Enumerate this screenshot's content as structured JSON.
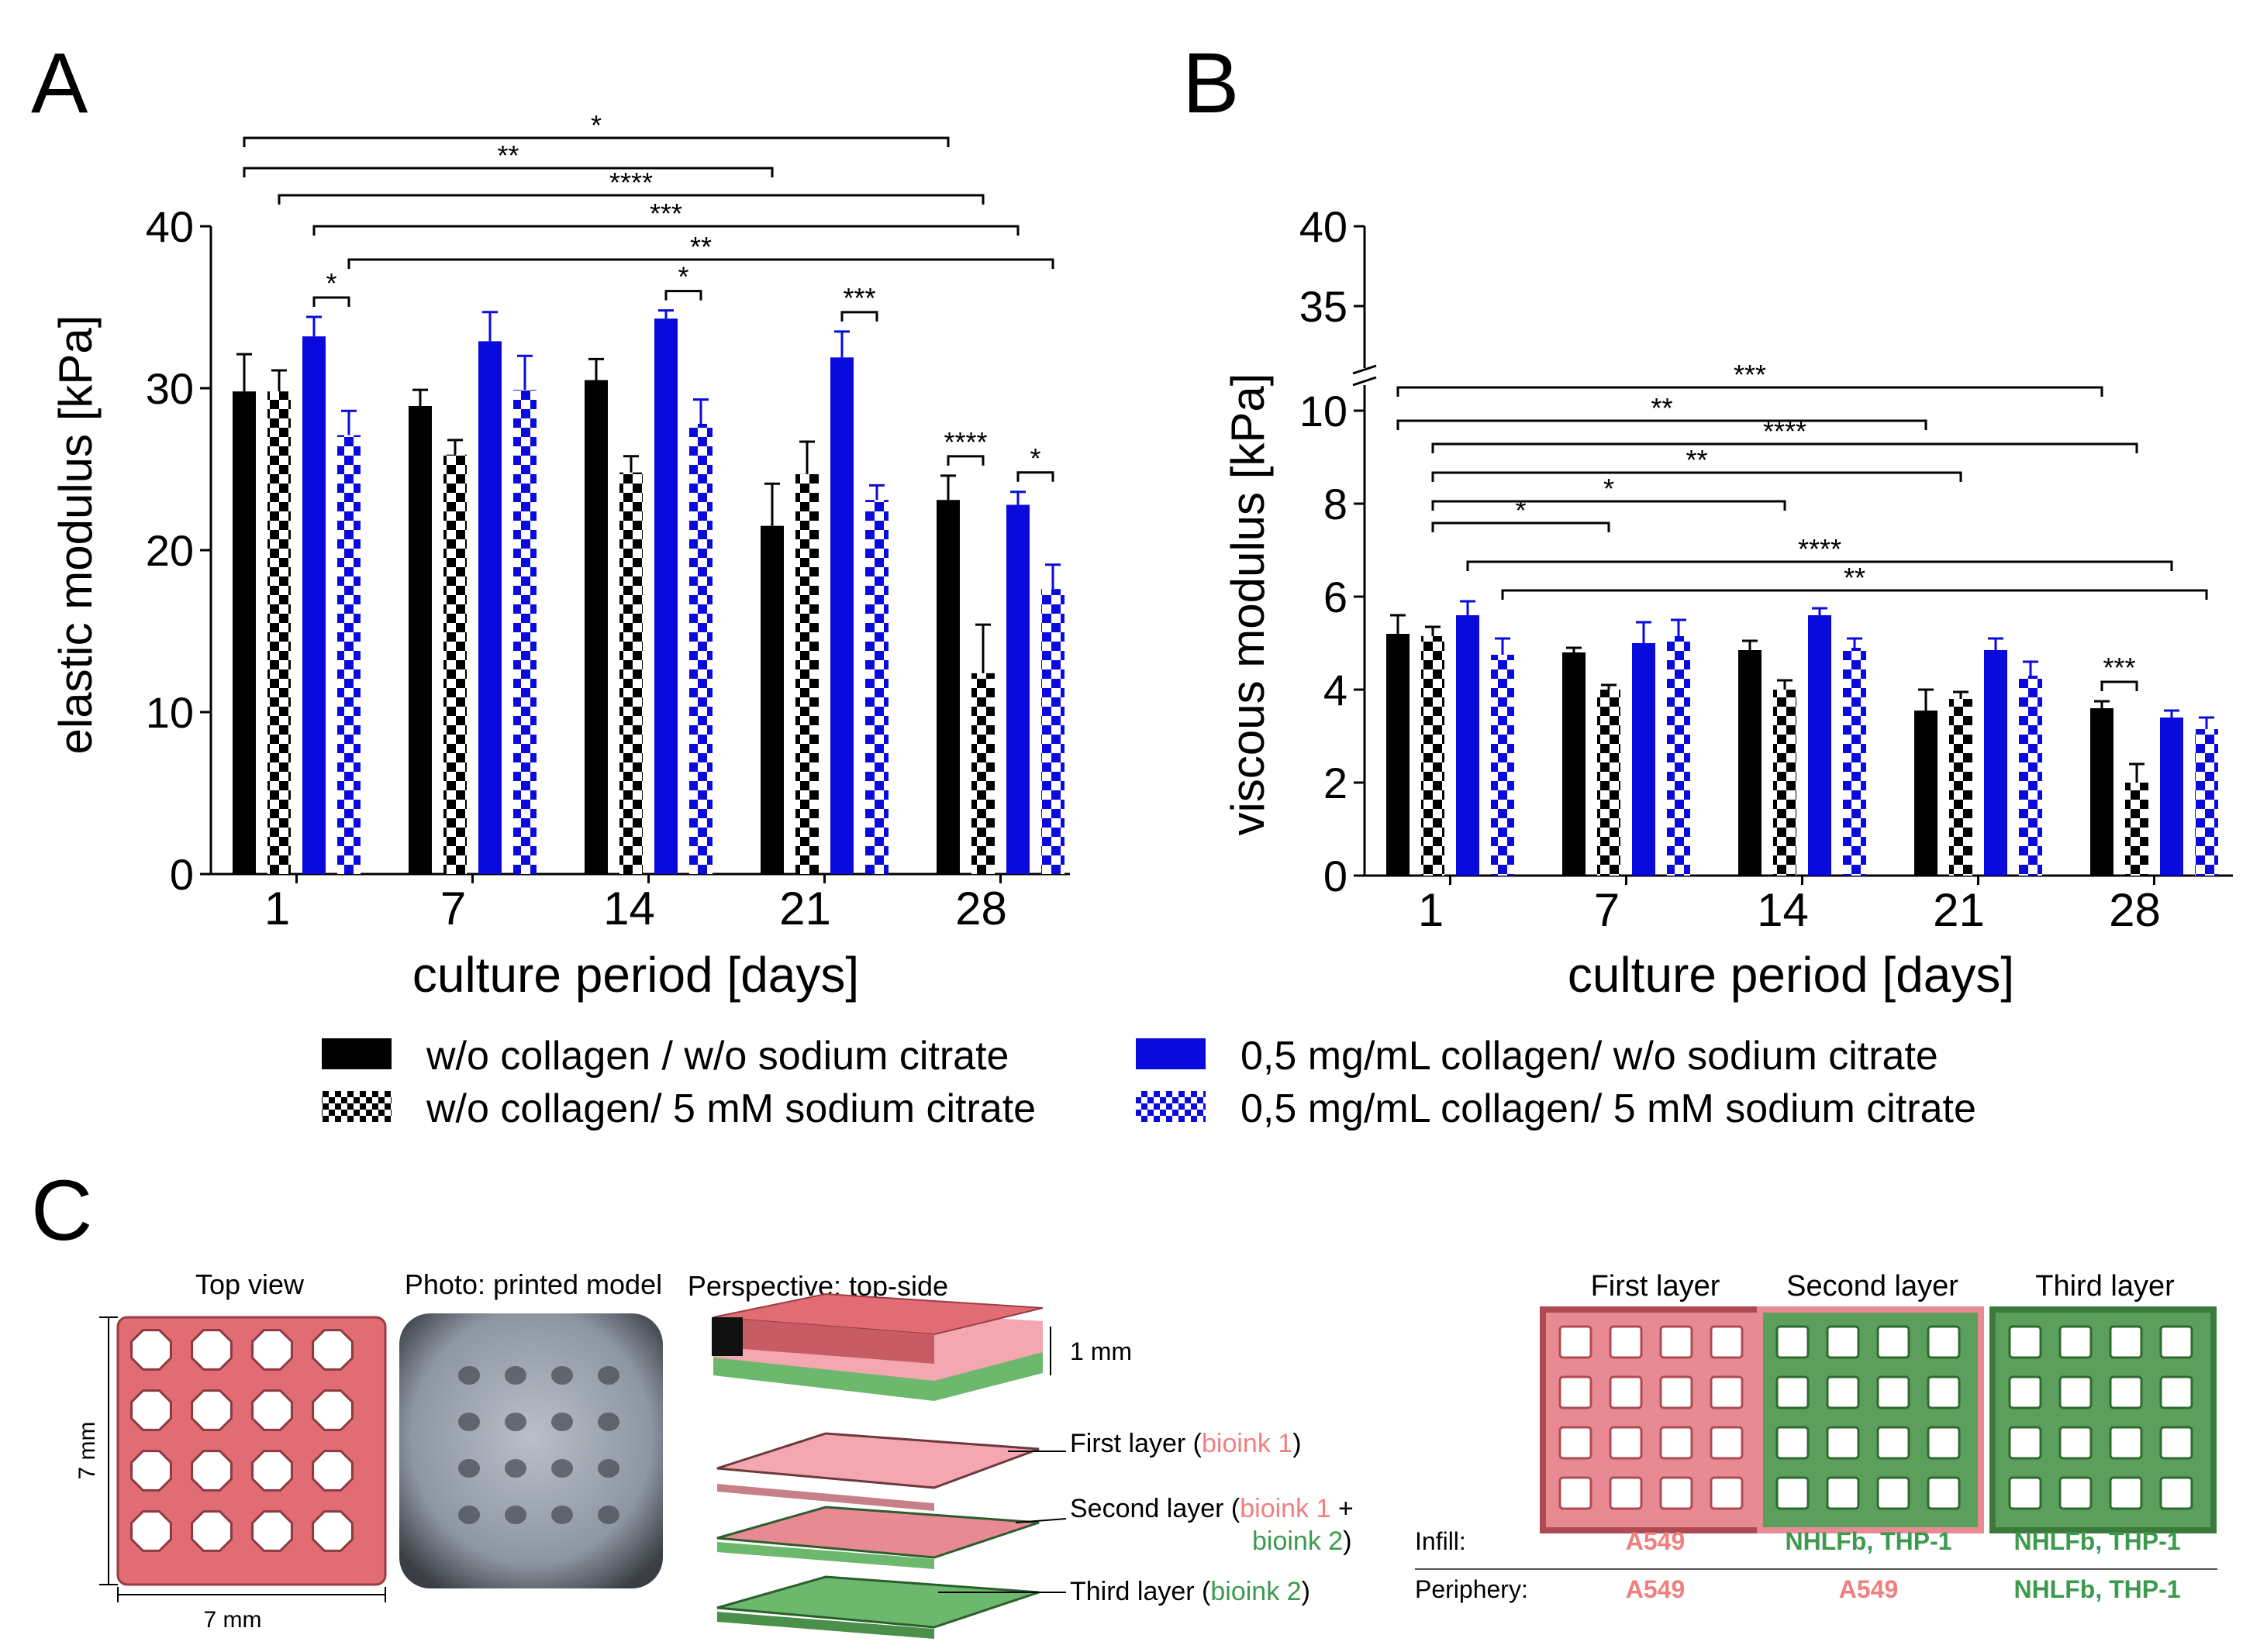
{
  "panel_labels": {
    "a": "A",
    "b": "B",
    "c": "C"
  },
  "colors": {
    "black": "#000000",
    "blue": "#0a0adc",
    "pink": "#f08080",
    "pink_light": "#f4a7b0",
    "green": "#6cb86c",
    "green_dark": "#4a8f4a",
    "text_pink": "#f08080",
    "text_green": "#3c9a4e"
  },
  "legend": [
    {
      "label": "w/o collagen / w/o sodium citrate",
      "pattern": "solid-black"
    },
    {
      "label": "w/o collagen/ 5 mM sodium citrate",
      "pattern": "check-black"
    },
    {
      "label": "0,5 mg/mL collagen/ w/o sodium citrate",
      "pattern": "solid-blue"
    },
    {
      "label": "0,5 mg/mL collagen/ 5 mM sodium citrate",
      "pattern": "check-blue"
    }
  ],
  "chart_data": [
    {
      "id": "A",
      "type": "bar",
      "title": "",
      "xlabel": "culture period [days]",
      "ylabel": "elastic modulus [kPa]",
      "ylim": [
        0,
        40
      ],
      "yticks": [
        "0",
        "10",
        "20",
        "30",
        "40"
      ],
      "categories": [
        "1",
        "7",
        "14",
        "21",
        "28"
      ],
      "series": [
        {
          "name": "w/o collagen / w/o sodium citrate",
          "values": [
            29.8,
            28.9,
            30.5,
            21.5,
            23.1
          ],
          "errors": [
            2.3,
            1.0,
            1.3,
            2.6,
            1.5
          ]
        },
        {
          "name": "w/o collagen/ 5 mM sodium citrate",
          "values": [
            29.8,
            25.9,
            24.8,
            24.7,
            12.4
          ],
          "errors": [
            1.3,
            0.9,
            1.0,
            2.0,
            3.0
          ]
        },
        {
          "name": "0,5 mg/mL collagen/ w/o sodium citrate",
          "values": [
            33.2,
            32.9,
            34.3,
            31.9,
            22.8
          ],
          "errors": [
            1.2,
            1.8,
            0.5,
            1.6,
            0.8
          ]
        },
        {
          "name": "0,5 mg/mL collagen/ 5 mM sodium citrate",
          "values": [
            27.1,
            29.9,
            27.8,
            23.1,
            17.6
          ],
          "errors": [
            1.5,
            2.1,
            1.5,
            0.9,
            1.5
          ]
        }
      ],
      "brackets_within": [
        {
          "group": 0,
          "from": 2,
          "to": 3,
          "label": "*"
        },
        {
          "group": 2,
          "from": 2,
          "to": 3,
          "label": "*"
        },
        {
          "group": 3,
          "from": 2,
          "to": 3,
          "label": "***"
        },
        {
          "group": 4,
          "from": 0,
          "to": 1,
          "label": "****"
        },
        {
          "group": 4,
          "from": 2,
          "to": 3,
          "label": "*"
        }
      ],
      "brackets_across": [
        {
          "from": [
            0,
            0
          ],
          "to": [
            4,
            0
          ],
          "label": "*"
        },
        {
          "from": [
            0,
            0
          ],
          "to": [
            3,
            0
          ],
          "label": "**"
        },
        {
          "from": [
            0,
            1
          ],
          "to": [
            4,
            1
          ],
          "label": "****"
        },
        {
          "from": [
            0,
            2
          ],
          "to": [
            4,
            2
          ],
          "label": "***"
        },
        {
          "from": [
            0,
            3
          ],
          "to": [
            4,
            3
          ],
          "label": "**"
        }
      ]
    },
    {
      "id": "B",
      "type": "bar",
      "title": "",
      "xlabel": "culture period [days]",
      "ylabel": "viscous modulus [kPa]",
      "ylim": [
        0,
        40
      ],
      "axis_break": [
        10,
        35
      ],
      "yticks": [
        "0",
        "2",
        "4",
        "6",
        "8",
        "10",
        "35",
        "40"
      ],
      "categories": [
        "1",
        "7",
        "14",
        "21",
        "28"
      ],
      "series": [
        {
          "name": "w/o collagen / w/o sodium citrate",
          "values": [
            5.2,
            4.8,
            4.85,
            3.55,
            3.6
          ],
          "errors": [
            0.4,
            0.1,
            0.2,
            0.45,
            0.15
          ]
        },
        {
          "name": "w/o collagen/ 5 mM sodium citrate",
          "values": [
            5.15,
            4.0,
            4.0,
            3.8,
            2.0
          ],
          "errors": [
            0.2,
            0.1,
            0.2,
            0.15,
            0.4
          ]
        },
        {
          "name": "0,5 mg/mL collagen/ w/o sodium citrate",
          "values": [
            5.6,
            5.0,
            5.6,
            4.85,
            3.4
          ],
          "errors": [
            0.3,
            0.45,
            0.15,
            0.25,
            0.15
          ]
        },
        {
          "name": "0,5 mg/mL collagen/ 5 mM sodium citrate",
          "values": [
            4.75,
            5.15,
            4.9,
            4.3,
            3.15
          ],
          "errors": [
            0.35,
            0.35,
            0.2,
            0.3,
            0.25
          ]
        }
      ],
      "brackets_within": [
        {
          "group": 4,
          "from": 0,
          "to": 1,
          "label": "***"
        }
      ],
      "brackets_across": [
        {
          "from": [
            0,
            0
          ],
          "to": [
            4,
            0
          ],
          "label": "***"
        },
        {
          "from": [
            0,
            0
          ],
          "to": [
            3,
            0
          ],
          "label": "**"
        },
        {
          "from": [
            0,
            1
          ],
          "to": [
            4,
            1
          ],
          "label": "****"
        },
        {
          "from": [
            0,
            1
          ],
          "to": [
            3,
            1
          ],
          "label": "**"
        },
        {
          "from": [
            0,
            1
          ],
          "to": [
            2,
            1
          ],
          "label": "*"
        },
        {
          "from": [
            0,
            1
          ],
          "to": [
            1,
            1
          ],
          "label": "*"
        },
        {
          "from": [
            0,
            2
          ],
          "to": [
            4,
            2
          ],
          "label": "****"
        },
        {
          "from": [
            0,
            3
          ],
          "to": [
            4,
            3
          ],
          "label": "**"
        }
      ]
    }
  ],
  "panel_c": {
    "top_view_title": "Top view",
    "photo_title": "Photo: printed model",
    "perspective_title": "Perspective: top-side",
    "dim_height": "7 mm",
    "dim_width": "7 mm",
    "dim_thickness": "1 mm",
    "layer_callouts": [
      {
        "prefix": "First layer (",
        "parts": [
          {
            "text": "bioink 1",
            "color": "pink"
          }
        ],
        "suffix": ")"
      },
      {
        "prefix": "Second layer (",
        "parts": [
          {
            "text": "bioink 1",
            "color": "pink"
          },
          {
            "text": " +",
            "color": "black"
          }
        ],
        "suffix": ""
      },
      {
        "prefix": "",
        "parts": [
          {
            "text": "bioink 2",
            "color": "green"
          }
        ],
        "suffix": ")"
      },
      {
        "prefix": "Third layer (",
        "parts": [
          {
            "text": "bioink 2",
            "color": "green"
          }
        ],
        "suffix": ")"
      }
    ],
    "layer_columns": [
      "First layer",
      "Second layer",
      "Third layer"
    ],
    "row_labels": [
      "Infill:",
      "Periphery:"
    ],
    "infill": [
      "A549",
      "NHLFb, THP-1",
      "NHLFb, THP-1"
    ],
    "periphery": [
      "A549",
      "A549",
      "NHLFb, THP-1"
    ]
  }
}
